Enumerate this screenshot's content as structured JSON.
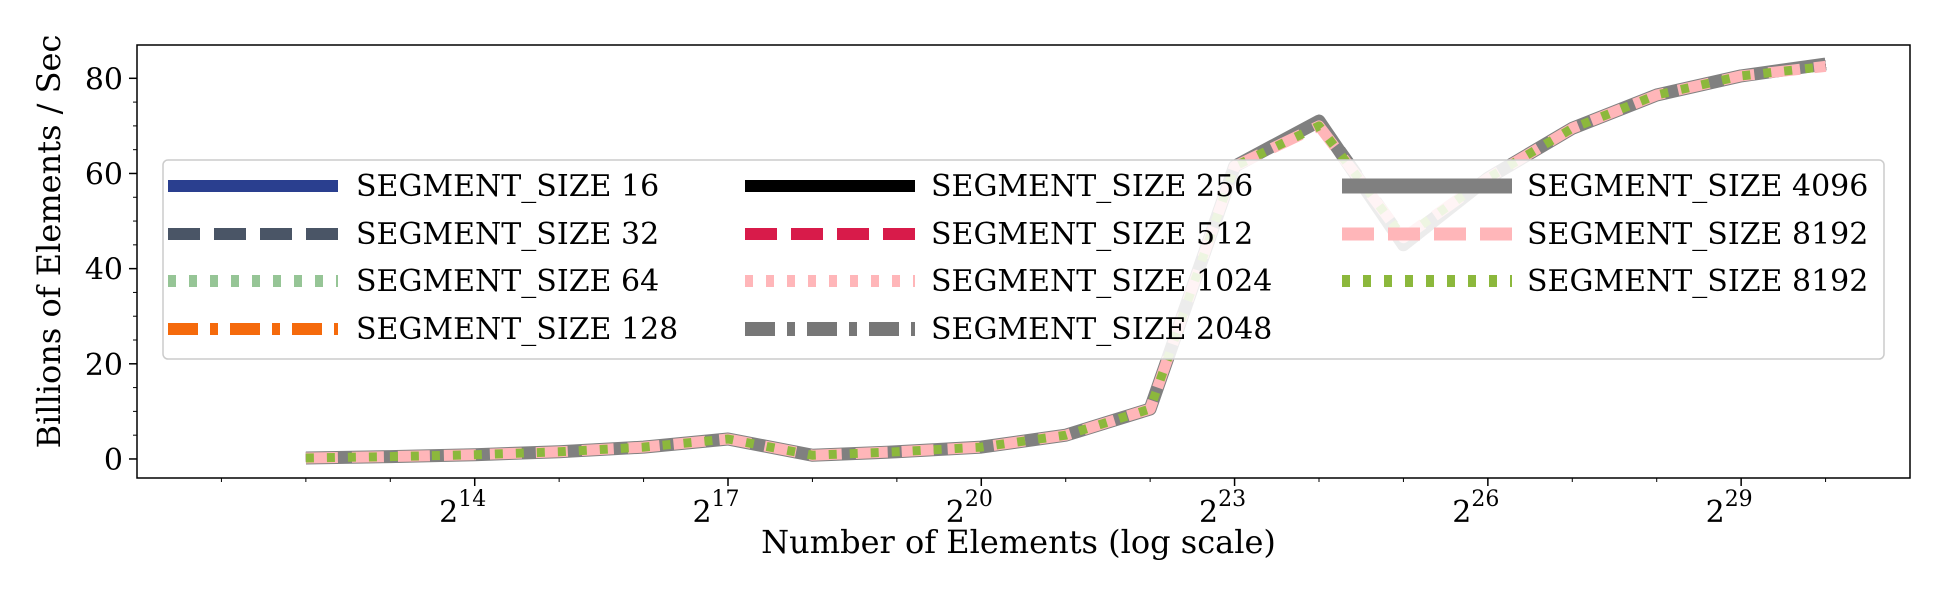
{
  "chart_data": {
    "type": "line",
    "xlabel": "Number of Elements (log scale)",
    "ylabel": "Billions of Elements / Sec",
    "x_scale": "log2",
    "x_tick_labels": [
      {
        "base": "2",
        "exp": "14",
        "x": 16384
      },
      {
        "base": "2",
        "exp": "17",
        "x": 131072
      },
      {
        "base": "2",
        "exp": "20",
        "x": 1048576
      },
      {
        "base": "2",
        "exp": "23",
        "x": 8388608
      },
      {
        "base": "2",
        "exp": "26",
        "x": 67108864
      },
      {
        "base": "2",
        "exp": "29",
        "x": 536870912
      }
    ],
    "y_ticks": [
      0,
      20,
      40,
      60,
      80
    ],
    "xlim": [
      1024,
      2147483648
    ],
    "ylim": [
      -4,
      87
    ],
    "grid": false,
    "legend_placement": "center-left, 3 columns",
    "x": [
      4096,
      8192,
      16384,
      32768,
      65536,
      131072,
      262144,
      524288,
      1048576,
      2097152,
      4194304,
      8388608,
      16777216,
      33554432,
      67108864,
      134217728,
      268435456,
      536870912,
      1073741824
    ],
    "series": [
      {
        "name": "SEGMENT_SIZE 16",
        "color": "#2a3f8f",
        "style": "solid",
        "values": [
          0.2,
          0.5,
          0.9,
          1.5,
          2.5,
          4.2,
          0.8,
          1.5,
          2.5,
          5.0,
          10.5,
          61.5,
          71.0,
          46.0,
          59.0,
          69.5,
          76.5,
          80.5,
          83.0
        ]
      },
      {
        "name": "SEGMENT_SIZE 32",
        "color": "#4a5566",
        "style": "dashed",
        "values": [
          0.2,
          0.5,
          0.9,
          1.5,
          2.5,
          4.2,
          0.8,
          1.5,
          2.5,
          5.0,
          10.5,
          61.5,
          71.0,
          46.0,
          59.0,
          69.5,
          76.5,
          80.5,
          83.0
        ]
      },
      {
        "name": "SEGMENT_SIZE 64",
        "color": "#96c596",
        "style": "dotted",
        "values": [
          0.2,
          0.5,
          0.9,
          1.5,
          2.5,
          4.2,
          0.8,
          1.5,
          2.5,
          5.0,
          10.5,
          61.5,
          71.0,
          46.0,
          59.0,
          69.5,
          76.5,
          80.5,
          83.0
        ]
      },
      {
        "name": "SEGMENT_SIZE 128",
        "color": "#f56a0c",
        "style": "dashdot",
        "values": [
          0.2,
          0.5,
          0.9,
          1.5,
          2.5,
          4.2,
          0.8,
          1.5,
          2.5,
          5.0,
          10.5,
          61.5,
          71.0,
          46.0,
          59.0,
          69.5,
          76.5,
          80.5,
          83.0
        ]
      },
      {
        "name": "SEGMENT_SIZE 256",
        "color": "#000000",
        "style": "solid",
        "values": [
          0.2,
          0.5,
          0.9,
          1.5,
          2.5,
          4.5,
          0.8,
          1.5,
          2.5,
          5.0,
          10.5,
          62.0,
          71.5,
          46.0,
          59.0,
          69.5,
          76.5,
          80.5,
          83.0
        ]
      },
      {
        "name": "SEGMENT_SIZE 512",
        "color": "#d81b4a",
        "style": "dashed",
        "values": [
          0.2,
          0.5,
          0.9,
          1.5,
          2.5,
          4.2,
          0.8,
          1.5,
          2.5,
          5.0,
          10.5,
          61.5,
          71.0,
          46.0,
          59.0,
          69.5,
          76.5,
          80.5,
          83.0
        ]
      },
      {
        "name": "SEGMENT_SIZE 1024",
        "color": "#ffb6b9",
        "style": "dotted",
        "values": [
          0.2,
          0.5,
          0.9,
          1.5,
          2.5,
          4.2,
          0.8,
          1.5,
          2.5,
          5.0,
          10.5,
          61.5,
          71.0,
          46.0,
          59.0,
          69.5,
          76.5,
          80.5,
          83.0
        ]
      },
      {
        "name": "SEGMENT_SIZE 2048",
        "color": "#777777",
        "style": "dashdot",
        "values": [
          0.2,
          0.5,
          0.9,
          1.5,
          2.5,
          4.2,
          0.8,
          1.5,
          2.5,
          5.0,
          10.5,
          61.5,
          71.0,
          46.0,
          59.0,
          69.5,
          76.5,
          80.5,
          83.0
        ]
      },
      {
        "name": "SEGMENT_SIZE 4096",
        "color": "#808080",
        "style": "solid",
        "values": [
          0.2,
          0.5,
          0.9,
          1.5,
          2.5,
          4.2,
          0.8,
          1.5,
          2.5,
          5.0,
          10.5,
          61.5,
          71.0,
          45.0,
          59.0,
          69.5,
          76.5,
          80.5,
          83.0
        ]
      },
      {
        "name": "SEGMENT_SIZE 8192",
        "color": "#ffb6b9",
        "style": "dashed",
        "values": [
          0.2,
          0.5,
          0.9,
          1.5,
          2.5,
          4.2,
          0.8,
          1.5,
          2.5,
          5.0,
          10.5,
          61.5,
          70.0,
          46.5,
          59.0,
          69.5,
          76.5,
          80.5,
          82.5
        ]
      },
      {
        "name": "SEGMENT_SIZE 8192",
        "color": "#8cb83c",
        "style": "dotted",
        "values": [
          0.2,
          0.5,
          0.9,
          1.5,
          2.5,
          4.2,
          0.8,
          1.5,
          2.5,
          5.0,
          10.5,
          61.5,
          70.0,
          46.5,
          59.0,
          69.5,
          76.5,
          80.5,
          82.5
        ]
      }
    ]
  }
}
